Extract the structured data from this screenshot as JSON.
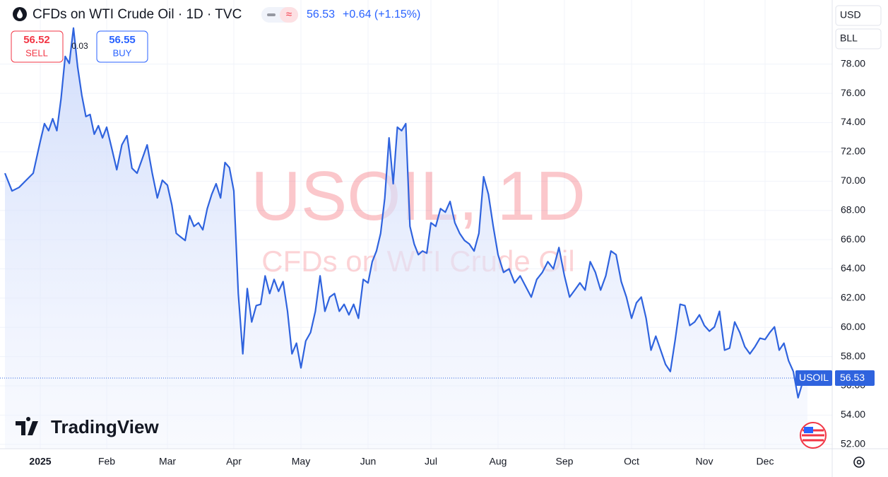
{
  "header": {
    "title": "CFDs on WTI Crude Oil · 1D · TVC",
    "price": "56.53",
    "change": "+0.64 (+1.15%)",
    "sell_price": "56.52",
    "sell_label": "SELL",
    "spread": "0.03",
    "buy_price": "56.55",
    "buy_label": "BUY",
    "currency": "USD",
    "unit": "BLL",
    "logo": "TradingView"
  },
  "chart_data": {
    "type": "area",
    "watermark": "USOIL, 1D",
    "watermark_subtitle": "CFDs on WTI Crude Oil",
    "color": "#2f63de",
    "values": [
      70.54,
      69.33,
      69.57,
      70.06,
      70.54,
      72.72,
      73.93,
      73.45,
      74.27,
      73.45,
      75.63,
      78.53,
      78.05,
      80.47,
      77.81,
      75.87,
      74.42,
      74.56,
      73.21,
      73.79,
      72.96,
      73.69,
      72.24,
      70.78,
      72.48,
      73.11,
      70.88,
      70.54,
      71.51,
      72.48,
      70.54,
      68.85,
      70.06,
      69.72,
      68.36,
      66.43,
      66.18,
      65.94,
      67.64,
      66.91,
      67.15,
      66.67,
      68.12,
      69.09,
      69.82,
      68.85,
      71.27,
      70.93,
      69.33,
      62.31,
      58.19,
      62.65,
      60.37,
      61.49,
      61.58,
      63.52,
      62.31,
      63.28,
      62.46,
      63.13,
      61.1,
      58.19,
      58.92,
      57.23,
      59.07,
      59.65,
      61.1,
      63.52,
      61.1,
      62.07,
      62.31,
      61.1,
      61.58,
      60.86,
      61.58,
      60.62,
      63.28,
      63.04,
      64.49,
      65.22,
      66.43,
      68.85,
      72.96,
      69.82,
      73.69,
      73.45,
      73.93,
      66.91,
      65.7,
      64.97,
      65.22,
      65.07,
      67.15,
      66.91,
      68.12,
      67.88,
      68.61,
      67.15,
      66.43,
      65.94,
      65.7,
      65.22,
      66.43,
      70.3,
      69.09,
      66.91,
      64.97,
      63.76,
      64.0,
      63.04,
      63.52,
      62.79,
      62.07,
      63.28,
      63.76,
      64.49,
      64.0,
      65.46,
      63.52,
      62.07,
      62.55,
      63.04,
      62.55,
      64.49,
      63.76,
      62.55,
      63.52,
      65.22,
      64.97,
      63.13,
      62.07,
      60.62,
      61.68,
      62.07,
      60.62,
      58.44,
      59.4,
      58.44,
      57.47,
      56.98,
      59.16,
      61.58,
      61.49,
      60.13,
      60.37,
      60.86,
      60.13,
      59.74,
      60.03,
      61.1,
      58.44,
      58.58,
      60.37,
      59.65,
      58.68,
      58.19,
      58.68,
      59.26,
      59.17,
      59.65,
      60.03,
      58.44,
      58.92,
      57.71,
      56.98,
      55.19,
      56.26,
      56.53
    ],
    "xlim": [
      0,
      167
    ],
    "xticks": [
      {
        "value": 5,
        "label": "2025"
      },
      {
        "value": 21,
        "label": "Feb"
      },
      {
        "value": 33,
        "label": "Mar"
      },
      {
        "value": 48,
        "label": "Apr"
      },
      {
        "value": 63,
        "label": "May"
      },
      {
        "value": 77,
        "label": "Jun"
      },
      {
        "value": 92,
        "label": "Jul"
      },
      {
        "value": 106,
        "label": "Aug"
      },
      {
        "value": 118,
        "label": "Sep"
      },
      {
        "value": 131,
        "label": "Oct"
      },
      {
        "value": 146,
        "label": "Nov"
      },
      {
        "value": 158,
        "label": "Dec"
      }
    ],
    "ylim": [
      51.7,
      82
    ],
    "yticks": [
      {
        "value": 52,
        "label": "52.00"
      },
      {
        "value": 54,
        "label": "54.00"
      },
      {
        "value": 56,
        "label": "56.00"
      },
      {
        "value": 58,
        "label": "58.00"
      },
      {
        "value": 60,
        "label": "60.00"
      },
      {
        "value": 62,
        "label": "62.00"
      },
      {
        "value": 64,
        "label": "64.00"
      },
      {
        "value": 66,
        "label": "66.00"
      },
      {
        "value": 68,
        "label": "68.00"
      },
      {
        "value": 70,
        "label": "70.00"
      },
      {
        "value": 72,
        "label": "72.00"
      },
      {
        "value": 74,
        "label": "74.00"
      },
      {
        "value": 76,
        "label": "76.00"
      },
      {
        "value": 78,
        "label": "78.00"
      }
    ],
    "grid": true,
    "last_price": {
      "symbol": "USOIL",
      "value": 56.53
    }
  }
}
